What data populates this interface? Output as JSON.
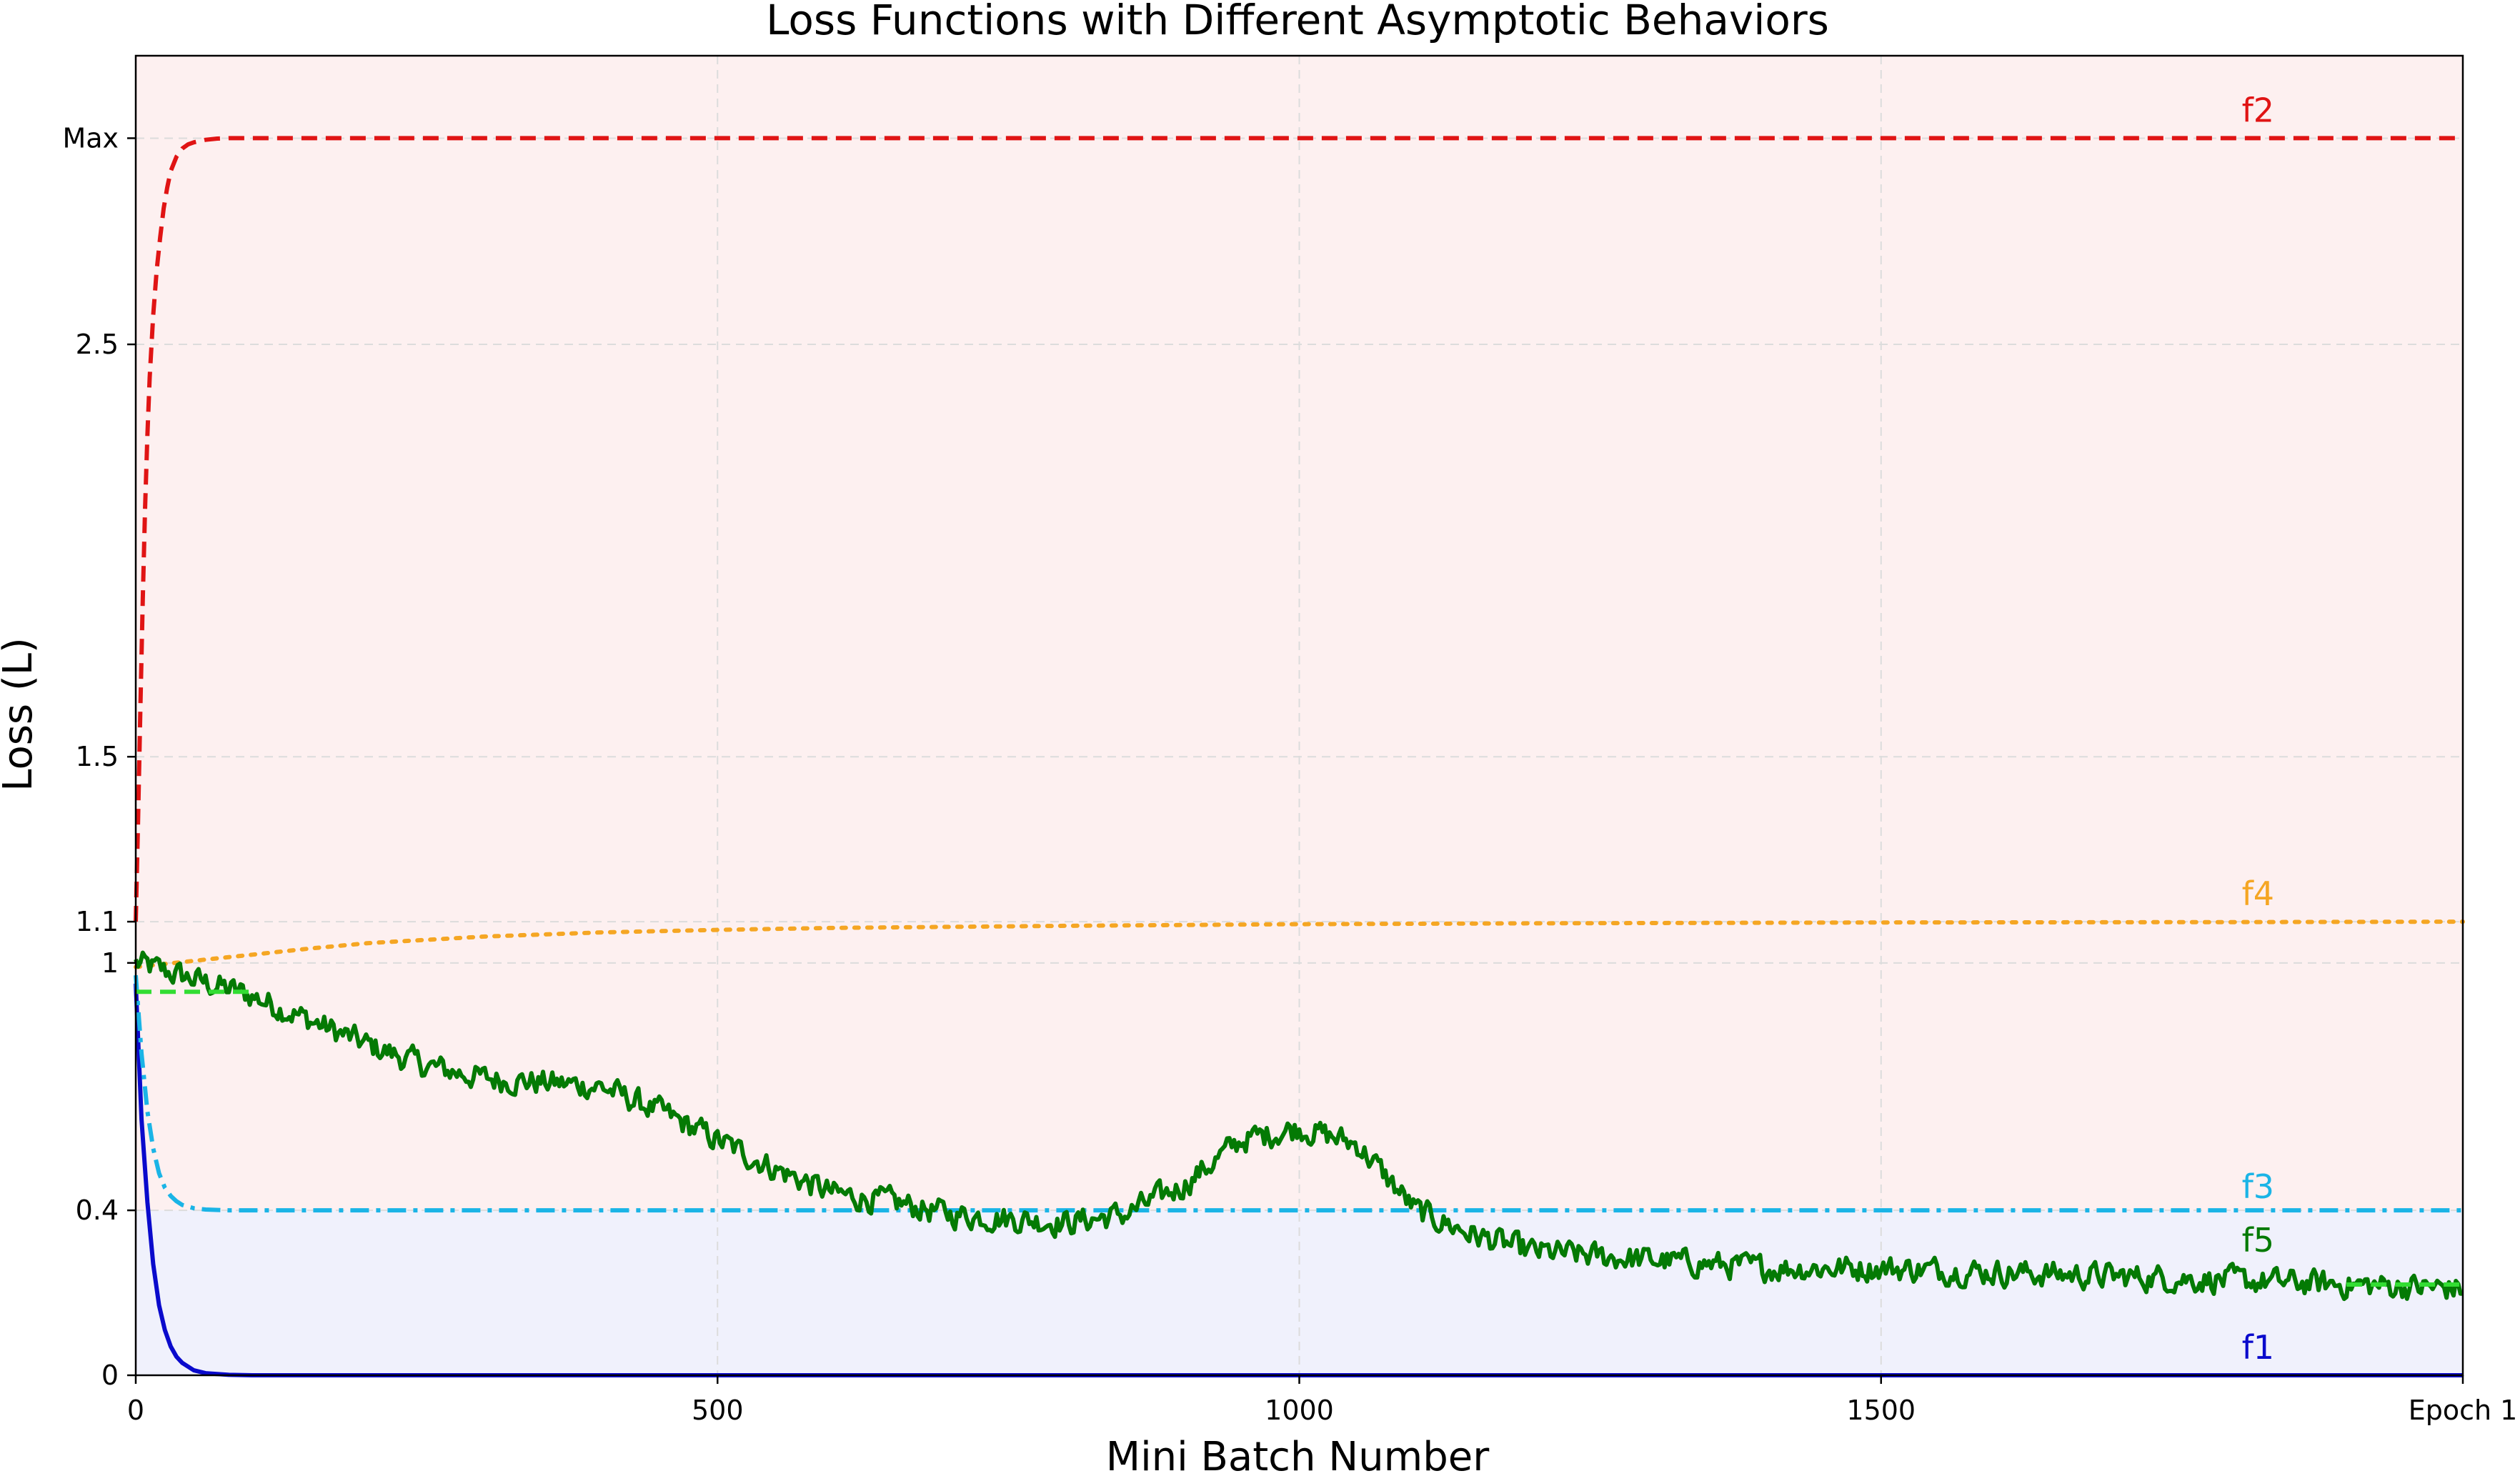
{
  "chart_data": {
    "type": "line",
    "title": "Loss Functions with Different Asymptotic Behaviors",
    "xlabel": "Mini Batch Number",
    "ylabel": "Loss (L)",
    "xlim": [
      0,
      2000
    ],
    "ylim": [
      0,
      3.2
    ],
    "grid": true,
    "x_ticks": [
      {
        "value": 0,
        "label": "0"
      },
      {
        "value": 500,
        "label": "500"
      },
      {
        "value": 1000,
        "label": "1000"
      },
      {
        "value": 1500,
        "label": "1500"
      },
      {
        "value": 2000,
        "label": "Epoch 1"
      }
    ],
    "y_ticks": [
      {
        "value": 0,
        "label": "0"
      },
      {
        "value": 0.4,
        "label": "0.4"
      },
      {
        "value": 1.0,
        "label": "1"
      },
      {
        "value": 1.1,
        "label": "1.1"
      },
      {
        "value": 1.5,
        "label": "1.5"
      },
      {
        "value": 2.5,
        "label": "2.5"
      },
      {
        "value": 3.0,
        "label": "Max"
      }
    ],
    "regions": [
      {
        "name": "above",
        "y_from": 0.4,
        "y_to": 3.2,
        "color": "#fdf0f0"
      },
      {
        "name": "below",
        "y_from": 0,
        "y_to": 0.4,
        "color": "#f0f1fc"
      }
    ],
    "series": [
      {
        "name": "f1",
        "color": "#0a0acc",
        "dash": "solid",
        "width": 6,
        "label_x": 1810,
        "label_y": 0.04,
        "x": [
          0,
          5,
          10,
          15,
          20,
          25,
          30,
          35,
          40,
          50,
          60,
          80,
          100,
          200,
          500,
          1000,
          1500,
          2000
        ],
        "y": [
          0.95,
          0.62,
          0.42,
          0.27,
          0.17,
          0.11,
          0.07,
          0.045,
          0.03,
          0.012,
          0.005,
          0.001,
          0,
          0,
          0,
          0,
          0,
          0
        ]
      },
      {
        "name": "f2",
        "color": "#e01414",
        "dash": "dashed",
        "width": 6,
        "label_x": 1810,
        "label_y": 3.04,
        "x": [
          0,
          2,
          4,
          6,
          8,
          10,
          12,
          15,
          18,
          21,
          24,
          27,
          30,
          35,
          40,
          45,
          50,
          60,
          70,
          80,
          100,
          200,
          500,
          1000,
          1500,
          2000
        ],
        "y": [
          1.1,
          1.35,
          1.62,
          1.88,
          2.1,
          2.28,
          2.42,
          2.57,
          2.68,
          2.76,
          2.83,
          2.88,
          2.92,
          2.955,
          2.975,
          2.985,
          2.99,
          2.996,
          2.999,
          3.0,
          3.0,
          3.0,
          3.0,
          3.0,
          3.0,
          3.0
        ]
      },
      {
        "name": "f3",
        "color": "#1ab4e6",
        "dash": "dashdot",
        "width": 6,
        "label_x": 1810,
        "label_y": 0.43,
        "x": [
          0,
          5,
          10,
          15,
          20,
          25,
          30,
          35,
          40,
          50,
          60,
          80,
          100,
          200,
          500,
          1000,
          1500,
          2000
        ],
        "y": [
          0.97,
          0.78,
          0.64,
          0.55,
          0.49,
          0.455,
          0.435,
          0.422,
          0.413,
          0.405,
          0.402,
          0.4,
          0.4,
          0.4,
          0.4,
          0.4,
          0.4,
          0.4
        ]
      },
      {
        "name": "f4",
        "color": "#f5a623",
        "dash": "dotted",
        "width": 6,
        "label_x": 1810,
        "label_y": 1.14,
        "x": [
          0,
          50,
          100,
          150,
          200,
          300,
          400,
          500,
          600,
          800,
          1000,
          1200,
          1500,
          1800,
          2000
        ],
        "y": [
          0.99,
          1.005,
          1.02,
          1.035,
          1.048,
          1.064,
          1.074,
          1.08,
          1.085,
          1.09,
          1.094,
          1.096,
          1.098,
          1.099,
          1.1
        ]
      },
      {
        "name": "f5",
        "color": "#047a04",
        "dash": "solid",
        "width": 6,
        "noise": 0.028,
        "label_x": 1810,
        "label_y": 0.3,
        "x": [
          0,
          50,
          100,
          150,
          200,
          250,
          300,
          350,
          400,
          450,
          500,
          550,
          600,
          650,
          700,
          750,
          800,
          850,
          900,
          950,
          1000,
          1050,
          1100,
          1150,
          1200,
          1300,
          1400,
          1500,
          1600,
          1700,
          1800,
          1900,
          2000
        ],
        "y": [
          1.0,
          0.96,
          0.92,
          0.86,
          0.8,
          0.75,
          0.72,
          0.71,
          0.7,
          0.64,
          0.57,
          0.5,
          0.44,
          0.42,
          0.39,
          0.38,
          0.37,
          0.39,
          0.46,
          0.57,
          0.6,
          0.56,
          0.4,
          0.34,
          0.3,
          0.28,
          0.26,
          0.26,
          0.25,
          0.24,
          0.23,
          0.22,
          0.21
        ]
      }
    ],
    "extra_markers": [
      {
        "color": "#33dd33",
        "x_from": 0,
        "x_to": 100,
        "y": 0.93
      },
      {
        "color": "#33dd33",
        "x_from": 1900,
        "x_to": 2000,
        "y": 0.22
      }
    ]
  }
}
